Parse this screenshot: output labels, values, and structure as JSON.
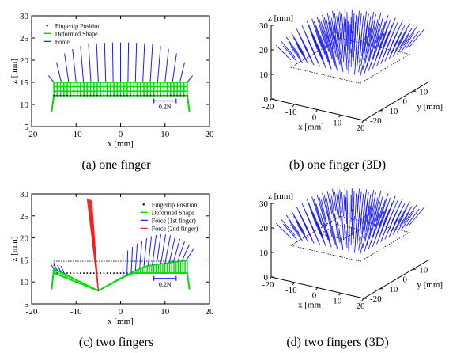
{
  "colors": {
    "fingertip": "#000000",
    "shape": "#00e000",
    "force": "#1a1aff",
    "force2": "#ff1a1a",
    "frame": "#000000"
  },
  "chart_data": [
    {
      "type": "line",
      "panel": "a",
      "caption": "(a) one finger",
      "xlabel": "x [mm]",
      "ylabel": "z [mm]",
      "xlim": [
        -20,
        20
      ],
      "ylim": [
        5,
        30
      ],
      "xticks": [
        -20,
        -10,
        0,
        10,
        20
      ],
      "yticks": [
        5,
        10,
        15,
        20,
        25,
        30
      ],
      "legend_position": "top-left",
      "legend": [
        "Fingertip Position",
        "Deformed Shape",
        "Force"
      ],
      "scale_label": "0.2N",
      "fingertip_z": 12,
      "shape_top_z": 15,
      "force_tip_z": [
        16.5,
        19.5,
        21.5,
        22.5,
        23.2,
        23.6,
        23.8,
        23.9,
        24.0,
        24.0,
        24.0,
        23.9,
        23.8,
        23.6,
        23.2,
        22.5,
        21.5,
        19.5,
        16.5
      ]
    },
    {
      "type": "line",
      "panel": "c",
      "caption": "(c) two fingers",
      "xlabel": "x [mm]",
      "ylabel": "z [mm]",
      "xlim": [
        -20,
        20
      ],
      "ylim": [
        5,
        30
      ],
      "xticks": [
        -20,
        -10,
        0,
        10,
        20
      ],
      "yticks": [
        5,
        10,
        15,
        20,
        25,
        30
      ],
      "legend_position": "top-right",
      "legend": [
        "Fingertip Position",
        "Deformed Shape",
        "Force (1st finger)",
        "Force (2nd finger)"
      ],
      "scale_label": "0.2N",
      "fingertip_z": 12,
      "second_finger_x": -5,
      "second_finger_z": 8,
      "second_force_top": [
        [
          -7.5,
          29
        ],
        [
          -6.5,
          28.5
        ]
      ],
      "outline_top_z": 14.7
    },
    {
      "type": "scatter",
      "panel": "b",
      "caption": "(b) one finger (3D)",
      "xlabel": "x [mm]",
      "ylabel": "y [mm]",
      "zlabel": "z [mm]",
      "xticks": [
        -20,
        -10,
        0,
        10,
        20
      ],
      "yticks": [
        -20,
        -10,
        0,
        10
      ],
      "zticks": [
        0,
        10,
        20,
        30
      ]
    },
    {
      "type": "scatter",
      "panel": "d",
      "caption": "(d) two fingers (3D)",
      "xlabel": "x [mm]",
      "ylabel": "y [mm]",
      "zlabel": "z [mm]",
      "xticks": [
        -20,
        -10,
        0,
        10,
        20
      ],
      "yticks": [
        -20,
        -10,
        0,
        10
      ],
      "zticks": [
        0,
        10,
        20,
        30
      ]
    }
  ]
}
